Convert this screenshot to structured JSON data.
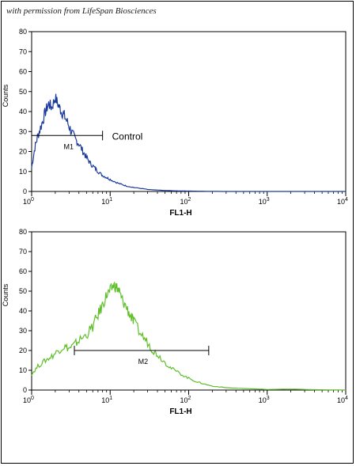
{
  "credit": "with permission from LifeSpan Biosciences",
  "chart_data": [
    {
      "type": "line",
      "name_hint": "top-histogram",
      "xscale": "log",
      "xlim": [
        1,
        10000
      ],
      "ylim": [
        0,
        80
      ],
      "xlabel": "FL1-H",
      "ylabel": "Counts",
      "y_ticks": [
        0,
        10,
        20,
        30,
        40,
        50,
        60,
        70,
        80
      ],
      "x_ticks": [
        {
          "base": "10",
          "exp": "0"
        },
        {
          "base": "10",
          "exp": "1"
        },
        {
          "base": "10",
          "exp": "2"
        },
        {
          "base": "10",
          "exp": "3"
        },
        {
          "base": "10",
          "exp": "4"
        }
      ],
      "line_color": "#1a3a9c",
      "series": [
        {
          "x": [
            1.0,
            1.1,
            1.2,
            1.35,
            1.5,
            1.65,
            1.8,
            2.0,
            2.2,
            2.4,
            2.6,
            2.9,
            3.2,
            3.6,
            4.0,
            4.5,
            5.0,
            5.6,
            6.3,
            7.0,
            8.0,
            9.0,
            10,
            12,
            14,
            16,
            20,
            25,
            30,
            40,
            50,
            70,
            100,
            150,
            300,
            1000,
            10000
          ],
          "y": [
            12,
            22,
            28,
            34,
            40,
            44,
            42,
            47,
            43,
            40,
            38,
            34,
            30,
            26,
            24,
            20,
            17,
            14,
            12,
            10,
            8,
            7,
            6,
            4.5,
            3.5,
            2.8,
            2,
            1.5,
            1,
            0.7,
            0.5,
            0.3,
            0.2,
            0.1,
            0,
            0,
            0
          ]
        }
      ],
      "marker": {
        "label": "M1",
        "from": 1.0,
        "to": 8.0,
        "level": 28
      },
      "annotation": "Control"
    },
    {
      "type": "line",
      "name_hint": "bottom-histogram",
      "xscale": "log",
      "xlim": [
        1,
        10000
      ],
      "ylim": [
        0,
        80
      ],
      "xlabel": "FL1-H",
      "ylabel": "Counts",
      "y_ticks": [
        0,
        10,
        20,
        30,
        40,
        50,
        60,
        70,
        80
      ],
      "x_ticks": [
        {
          "base": "10",
          "exp": "0"
        },
        {
          "base": "10",
          "exp": "1"
        },
        {
          "base": "10",
          "exp": "2"
        },
        {
          "base": "10",
          "exp": "3"
        },
        {
          "base": "10",
          "exp": "4"
        }
      ],
      "line_color": "#5fbf2a",
      "series": [
        {
          "x": [
            1.0,
            1.2,
            1.5,
            1.8,
            2.2,
            2.6,
            3.0,
            3.5,
            4.0,
            5.0,
            6.0,
            7.0,
            8.0,
            9.0,
            10,
            11,
            12,
            13,
            14,
            16,
            18,
            20,
            25,
            30,
            35,
            40,
            50,
            60,
            80,
            100,
            130,
            160,
            200,
            300,
            500,
            800,
            1000,
            2000,
            4000,
            10000
          ],
          "y": [
            8,
            12,
            15,
            17,
            20,
            22,
            21,
            23,
            25,
            28,
            32,
            38,
            43,
            48,
            50,
            53,
            52,
            50,
            46,
            42,
            38,
            34,
            28,
            24,
            20,
            18,
            14,
            11,
            8,
            6,
            4,
            3,
            2,
            1.2,
            0.8,
            0.5,
            0.3,
            0.5,
            0.2,
            0
          ]
        }
      ],
      "marker": {
        "label": "M2",
        "from": 3.5,
        "to": 180,
        "level": 20
      },
      "annotation": ""
    }
  ]
}
